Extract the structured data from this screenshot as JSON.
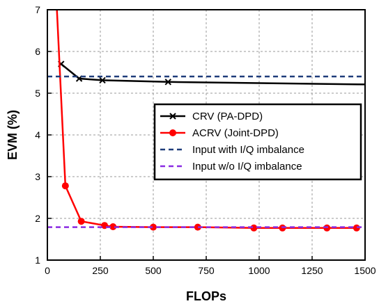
{
  "chart_data": {
    "type": "line",
    "title": "",
    "xlabel": "FLOPs",
    "ylabel": "EVM (%)",
    "xlim": [
      0,
      1500
    ],
    "ylim": [
      1,
      7
    ],
    "grid": true,
    "legend_position": "right",
    "x_ticks": [
      "0",
      "250",
      "500",
      "750",
      "1000",
      "1250",
      "1500"
    ],
    "y_ticks": [
      "1",
      "2",
      "3",
      "4",
      "5",
      "6",
      "7"
    ],
    "series": [
      {
        "name": "CRV (PA-DPD)",
        "color": "#000000",
        "style": "solid",
        "marker": "x",
        "points": [
          [
            65,
            5.7
          ],
          [
            150,
            5.35
          ],
          [
            260,
            5.31
          ],
          [
            570,
            5.27
          ],
          [
            1500,
            5.21
          ]
        ],
        "marker_points": [
          [
            65,
            5.7
          ],
          [
            150,
            5.35
          ],
          [
            260,
            5.31
          ],
          [
            570,
            5.27
          ]
        ]
      },
      {
        "name": "ACRV (Joint-DPD)",
        "color": "#ff0000",
        "style": "solid",
        "marker": "circle",
        "points": [
          [
            45,
            7.0
          ],
          [
            85,
            2.78
          ],
          [
            160,
            1.93
          ],
          [
            270,
            1.83
          ],
          [
            310,
            1.8
          ],
          [
            500,
            1.79
          ],
          [
            710,
            1.79
          ],
          [
            975,
            1.77
          ],
          [
            1110,
            1.77
          ],
          [
            1320,
            1.77
          ],
          [
            1460,
            1.77
          ]
        ],
        "marker_points": [
          [
            85,
            2.78
          ],
          [
            160,
            1.93
          ],
          [
            270,
            1.83
          ],
          [
            310,
            1.8
          ],
          [
            500,
            1.79
          ],
          [
            710,
            1.79
          ],
          [
            975,
            1.77
          ],
          [
            1110,
            1.77
          ],
          [
            1320,
            1.77
          ],
          [
            1460,
            1.77
          ]
        ]
      },
      {
        "name": "Input with I/Q imbalance",
        "color": "#1f3d7a",
        "style": "dashed",
        "marker": "none",
        "points": [
          [
            0,
            5.4
          ],
          [
            1500,
            5.4
          ]
        ]
      },
      {
        "name": "Input w/o I/Q imbalance",
        "color": "#8a2be2",
        "style": "dashed",
        "marker": "none",
        "points": [
          [
            0,
            1.79
          ],
          [
            1500,
            1.79
          ]
        ]
      }
    ]
  }
}
